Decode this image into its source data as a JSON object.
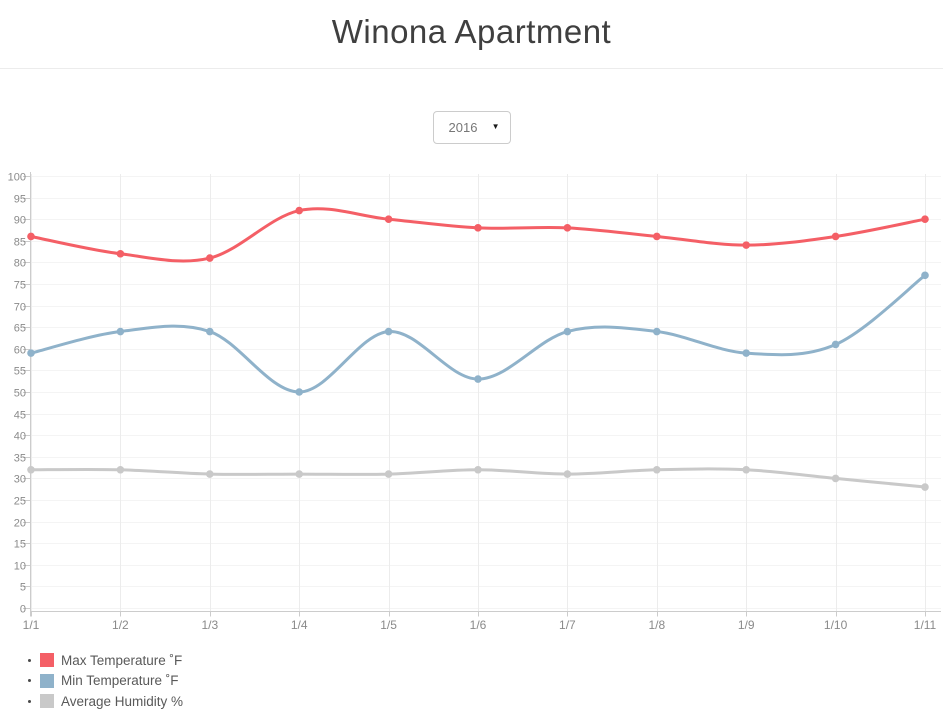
{
  "page": {
    "title": "Winona Apartment"
  },
  "controls": {
    "year_select": {
      "value": "2016"
    }
  },
  "chart_data": {
    "type": "line",
    "title": "Winona Apartment",
    "x_categories": [
      "1/1",
      "1/2",
      "1/3",
      "1/4",
      "1/5",
      "1/6",
      "1/7",
      "1/8",
      "1/9",
      "1/10",
      "1/11"
    ],
    "series": [
      {
        "name": "Max Temperature ˚F",
        "color": "#f45f66",
        "values": [
          86,
          82,
          81,
          92,
          90,
          88,
          88,
          86,
          84,
          86,
          90
        ]
      },
      {
        "name": "Min Temperature ˚F",
        "color": "#8fb2ca",
        "values": [
          59,
          64,
          64,
          50,
          64,
          53,
          64,
          64,
          59,
          61,
          77
        ]
      },
      {
        "name": "Average Humidity %",
        "color": "#c9c9c9",
        "values": [
          32,
          32,
          31,
          31,
          31,
          32,
          31,
          32,
          32,
          30,
          28
        ]
      }
    ],
    "ylim": [
      0,
      100
    ],
    "ytick_step": 5,
    "grid": true,
    "smooth": true,
    "legend_position": "bottom-left",
    "colors": {
      "axis": "#cccccc",
      "grid_vertical": "#ececec",
      "grid_horizontal": "#f4f4f4",
      "tick_label": "#8a8a8a"
    }
  }
}
